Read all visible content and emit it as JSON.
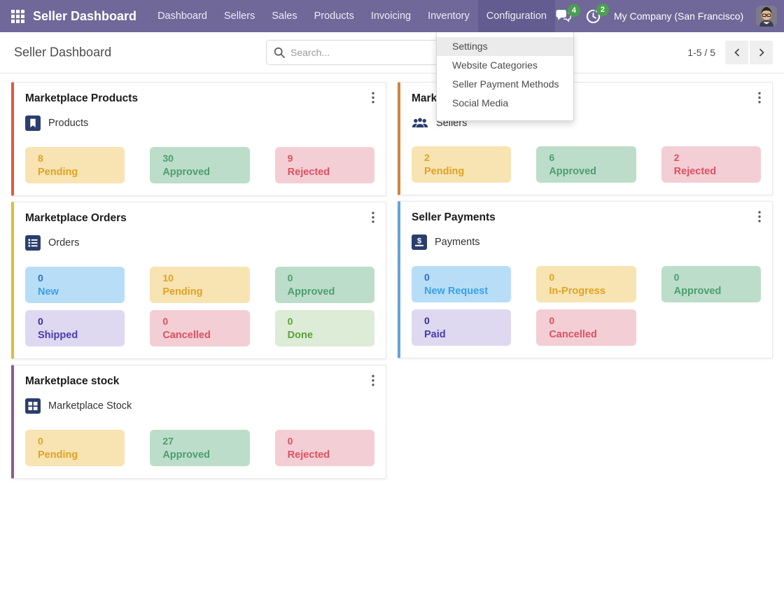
{
  "nav": {
    "brand": "Seller Dashboard",
    "items": [
      {
        "label": "Dashboard",
        "active": false
      },
      {
        "label": "Sellers",
        "active": false
      },
      {
        "label": "Sales",
        "active": false
      },
      {
        "label": "Products",
        "active": false
      },
      {
        "label": "Invoicing",
        "active": false
      },
      {
        "label": "Inventory",
        "active": false
      },
      {
        "label": "Configuration",
        "active": true
      }
    ],
    "messages_badge": "4",
    "activities_badge": "2",
    "company": "My Company (San Francisco)",
    "bar_color": "#6f6899",
    "active_item_color": "#635c90",
    "badge_color": "#4ba04f"
  },
  "control_panel": {
    "breadcrumb": "Seller Dashboard",
    "search_placeholder": "Search...",
    "pager": "1-5 / 5"
  },
  "dropdown": {
    "items": [
      {
        "label": "Settings",
        "highlighted": true
      },
      {
        "label": "Website Categories",
        "highlighted": false
      },
      {
        "label": "Seller Payment Methods",
        "highlighted": false
      },
      {
        "label": "Social Media",
        "highlighted": false
      }
    ]
  },
  "cards": [
    {
      "column": 1,
      "title": "Marketplace Products",
      "accent": "#e2593f",
      "icon": "bookmark-icon",
      "menu_label": "Products",
      "stats": [
        {
          "value": "8",
          "label": "Pending",
          "bg": "#f8e3b2",
          "color": "#dfa325"
        },
        {
          "value": "30",
          "label": "Approved",
          "bg": "#bcddc9",
          "color": "#4d9e70"
        },
        {
          "value": "9",
          "label": "Rejected",
          "bg": "#f3ced5",
          "color": "#df5060"
        }
      ]
    },
    {
      "column": 2,
      "title": "Marketplace Sellers",
      "accent": "#cd8540",
      "icon": "users-icon",
      "menu_label": "Sellers",
      "stats": [
        {
          "value": "2",
          "label": "Pending",
          "bg": "#f8e3b2",
          "color": "#dfa325"
        },
        {
          "value": "6",
          "label": "Approved",
          "bg": "#bcddc9",
          "color": "#4d9e70"
        },
        {
          "value": "2",
          "label": "Rejected",
          "bg": "#f3ced5",
          "color": "#df5060"
        }
      ]
    },
    {
      "column": 1,
      "title": "Marketplace Orders",
      "accent": "#ddbe32",
      "icon": "list-icon",
      "menu_label": "Orders",
      "stats": [
        {
          "value": "0",
          "label": "New",
          "bg": "#b7def6",
          "color": "#3ba0e9",
          "value_color": "#2e6fc4"
        },
        {
          "value": "10",
          "label": "Pending",
          "bg": "#f8e3b2",
          "color": "#dfa325"
        },
        {
          "value": "0",
          "label": "Approved",
          "bg": "#bcddc9",
          "color": "#4d9e70"
        },
        {
          "value": "0",
          "label": "Shipped",
          "bg": "#ded9f0",
          "color": "#473cb3",
          "value_color": "#34309b"
        },
        {
          "value": "0",
          "label": "Cancelled",
          "bg": "#f3ced5",
          "color": "#df5060"
        },
        {
          "value": "0",
          "label": "Done",
          "bg": "#dcecd7",
          "color": "#58a438"
        }
      ]
    },
    {
      "column": 2,
      "title": "Seller Payments",
      "accent": "#68a1d8",
      "icon": "money-check-icon",
      "menu_label": "Payments",
      "stats": [
        {
          "value": "0",
          "label": "New Request",
          "bg": "#b7def6",
          "color": "#3ba0e9",
          "value_color": "#2e6fc4"
        },
        {
          "value": "0",
          "label": "In-Progress",
          "bg": "#f8e3b2",
          "color": "#dfa325"
        },
        {
          "value": "0",
          "label": "Approved",
          "bg": "#bcddc9",
          "color": "#4d9e70"
        },
        {
          "value": "0",
          "label": "Paid",
          "bg": "#ded9f0",
          "color": "#473cb3",
          "value_color": "#34309b"
        },
        {
          "value": "0",
          "label": "Cancelled",
          "bg": "#f3ced5",
          "color": "#df5060"
        }
      ]
    },
    {
      "column": 1,
      "title": "Marketplace stock",
      "accent": "#8d5a90",
      "icon": "table-cells-icon",
      "menu_label": "Marketplace Stock",
      "stats": [
        {
          "value": "0",
          "label": "Pending",
          "bg": "#f8e3b2",
          "color": "#dfa325"
        },
        {
          "value": "27",
          "label": "Approved",
          "bg": "#bcddc9",
          "color": "#4d9e70"
        },
        {
          "value": "0",
          "label": "Rejected",
          "bg": "#f3ced5",
          "color": "#df5060"
        }
      ]
    }
  ]
}
